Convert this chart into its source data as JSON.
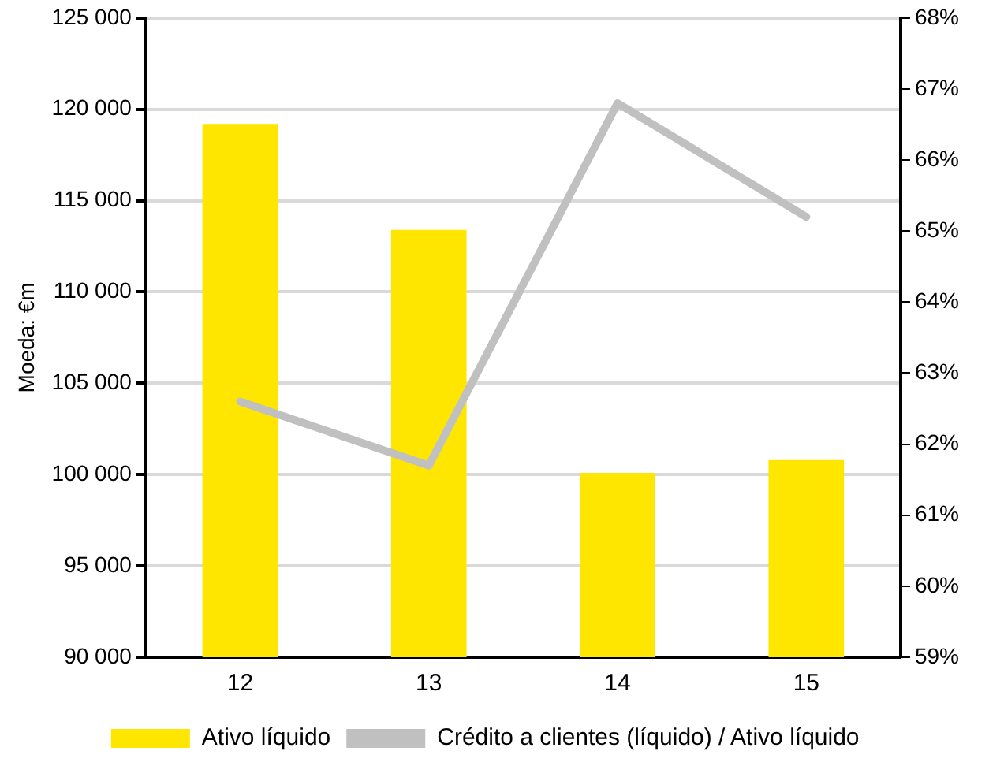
{
  "chart_data": {
    "type": "bar",
    "ylabel": "Moeda: €m",
    "categories": [
      "12",
      "13",
      "14",
      "15"
    ],
    "series": [
      {
        "name": "Ativo líquido",
        "color": "#ffe600",
        "values": [
          119200,
          113400,
          100100,
          100800
        ]
      },
      {
        "name": "Crédito a clientes (líquido) / Ativo líquido",
        "type": "line",
        "axis": "y2",
        "color": "#c0c0c0",
        "values": [
          62.6,
          61.7,
          66.8,
          65.2
        ]
      }
    ],
    "ylim": [
      90000,
      125000
    ],
    "yticks": [
      {
        "value": 90000,
        "label": "90 000"
      },
      {
        "value": 95000,
        "label": "95 000"
      },
      {
        "value": 100000,
        "label": "100 000"
      },
      {
        "value": 105000,
        "label": "105 000"
      },
      {
        "value": 110000,
        "label": "110 000"
      },
      {
        "value": 115000,
        "label": "115 000"
      },
      {
        "value": 120000,
        "label": "120 000"
      },
      {
        "value": 125000,
        "label": "125 000"
      }
    ],
    "y2lim": [
      59,
      68
    ],
    "y2ticks": [
      {
        "value": 59,
        "label": "59%"
      },
      {
        "value": 60,
        "label": "60%"
      },
      {
        "value": 61,
        "label": "61%"
      },
      {
        "value": 62,
        "label": "62%"
      },
      {
        "value": 63,
        "label": "63%"
      },
      {
        "value": 64,
        "label": "64%"
      },
      {
        "value": 65,
        "label": "65%"
      },
      {
        "value": 66,
        "label": "66%"
      },
      {
        "value": 67,
        "label": "67%"
      },
      {
        "value": 68,
        "label": "68%"
      }
    ],
    "grid": "y",
    "legend": "bottom",
    "marker": "none",
    "line_style": "solid"
  }
}
